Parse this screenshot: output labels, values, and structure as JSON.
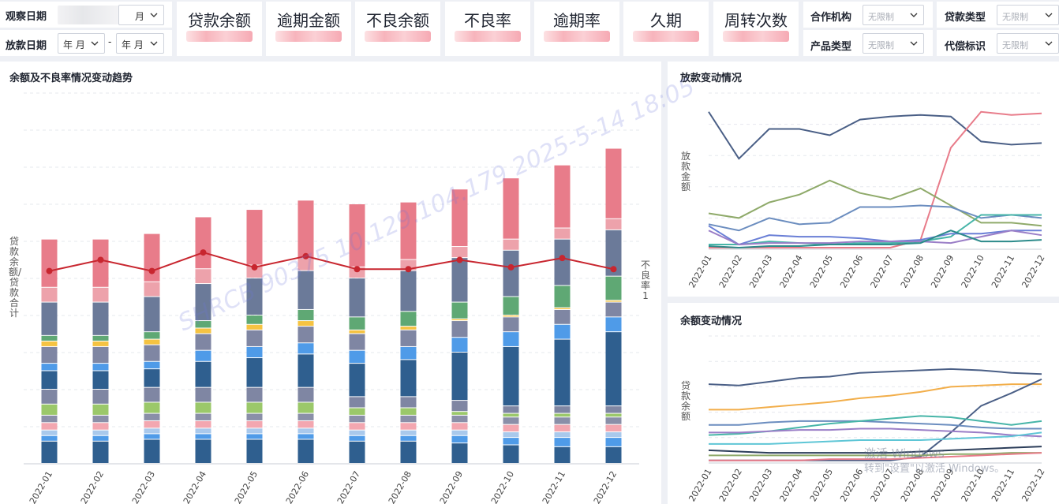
{
  "filters": {
    "observe_date": {
      "label": "观察日期",
      "month_value": "月"
    },
    "loan_date": {
      "label": "放款日期",
      "from": "年 月",
      "separator": "-",
      "to": "年 月"
    },
    "partner": {
      "label": "合作机构",
      "value": "无限制"
    },
    "loan_type": {
      "label": "贷款类型",
      "value": "无限制"
    },
    "product_type": {
      "label": "产品类型",
      "value": "无限制"
    },
    "compensation_flag": {
      "label": "代偿标识",
      "value": "无限制"
    }
  },
  "kpis": [
    {
      "title": "贷款余额",
      "value": ""
    },
    {
      "title": "逾期金额",
      "value": ""
    },
    {
      "title": "不良余额",
      "value": ""
    },
    {
      "title": "不良率",
      "value": ""
    },
    {
      "title": "逾期率",
      "value": ""
    },
    {
      "title": "久期",
      "value": ""
    },
    {
      "title": "周转次数",
      "value": ""
    }
  ],
  "main_panel": {
    "title": "余额及不良率情况变动趋势",
    "y_left_label": "贷款余额/贷款合计",
    "y_right_label": "不良率 1"
  },
  "loan_panel": {
    "title": "放款变动情况",
    "y_label": "放款金额"
  },
  "balance_panel": {
    "title": "余额变动情况",
    "y_label": "贷款余额"
  },
  "watermark": {
    "text": "SHRCB 90375 10.129.104.179 2025-5-14 18:05"
  },
  "windows_activation": {
    "line1": "激活 Windows",
    "line2": "转到\"设置\"以激活 Windows。"
  },
  "colors": {
    "navy": "#2f5f8f",
    "pink": "#e87c8a",
    "slate": "#6b7a99",
    "green": "#5fa874",
    "blue": "#4f9be8",
    "red_line": "#c8262f"
  },
  "chart_data": [
    {
      "type": "bar",
      "title": "余额及不良率情况变动趋势",
      "categories": [
        "2022-01",
        "2022-02",
        "2022-03",
        "2022-04",
        "2022-05",
        "2022-06",
        "2022-07",
        "2022-08",
        "2022-09",
        "2022-10",
        "2022-11",
        "2022-12"
      ],
      "ylabel": "贷款余额/贷款合计",
      "y2label": "不良率 1",
      "ylim": [
        0,
        100
      ],
      "grid": true,
      "stacked": true,
      "series": [
        {
          "color": "#2f5f8f",
          "values": [
            6,
            6,
            6.5,
            6.5,
            6.5,
            6.5,
            6,
            6,
            5.5,
            5,
            4.5,
            4.5
          ]
        },
        {
          "color": "#4f9be8",
          "values": [
            1.5,
            1.5,
            1.5,
            1.5,
            1.5,
            1.5,
            1.5,
            1.5,
            2,
            2,
            2.5,
            2.5
          ]
        },
        {
          "color": "#a9c9ec",
          "values": [
            1.5,
            1.5,
            1.5,
            1.5,
            1.5,
            1.5,
            1.5,
            1.5,
            1.5,
            1.5,
            1.5,
            1.5
          ]
        },
        {
          "color": "#f3a7b0",
          "values": [
            2,
            2,
            2,
            2,
            2,
            2,
            2,
            2,
            2,
            2,
            2,
            2
          ]
        },
        {
          "color": "#8a8fa8",
          "values": [
            2,
            2,
            2,
            2,
            2,
            2,
            2,
            2,
            2,
            2,
            2,
            2
          ]
        },
        {
          "color": "#9bc86a",
          "values": [
            3,
            3,
            3,
            3,
            3,
            3,
            2,
            2,
            1,
            1,
            1,
            1
          ]
        },
        {
          "color": "#7f86a3",
          "values": [
            4,
            4,
            4,
            4,
            4,
            4,
            3,
            3,
            3,
            2,
            2,
            2
          ]
        },
        {
          "color": "#2f5f8f",
          "values": [
            5,
            5,
            5,
            7,
            8,
            9,
            9,
            10,
            13,
            16,
            18,
            20
          ]
        },
        {
          "color": "#4f9be8",
          "values": [
            2,
            2,
            2,
            3,
            3,
            3,
            3.5,
            3.5,
            4,
            4,
            4,
            4
          ]
        },
        {
          "color": "#7f86a3",
          "values": [
            4.5,
            4.5,
            4.5,
            4.5,
            4.5,
            4.5,
            4.5,
            4.5,
            4.5,
            4,
            4,
            4
          ]
        },
        {
          "color": "#f5c342",
          "values": [
            1.5,
            1.5,
            1.5,
            1.5,
            1.5,
            1.5,
            1,
            1,
            0.5,
            0.5,
            0.5,
            0.5
          ]
        },
        {
          "color": "#5fa874",
          "values": [
            1.5,
            1.5,
            2,
            2,
            2.5,
            3,
            3.5,
            4,
            4.5,
            5,
            6,
            6.5
          ]
        },
        {
          "color": "#6b7a99",
          "values": [
            9,
            9,
            9.5,
            10,
            10,
            10.5,
            10.5,
            11,
            12,
            12.5,
            12.5,
            12.5
          ]
        },
        {
          "color": "#eda2ab",
          "values": [
            4,
            4,
            4,
            4,
            3.5,
            3.5,
            3,
            3,
            3,
            3,
            3,
            3
          ]
        },
        {
          "color": "#e87c8a",
          "values": [
            13,
            13,
            13,
            14,
            15,
            15.5,
            17,
            15.5,
            15.5,
            16.5,
            17,
            19
          ]
        }
      ],
      "line_series": {
        "color": "#c8262f",
        "values": [
          52,
          55,
          52,
          57,
          53,
          56,
          52.5,
          52.5,
          55,
          53,
          55.5,
          52.5
        ]
      }
    },
    {
      "type": "line",
      "title": "放款变动情况",
      "ylabel": "放款金额",
      "categories": [
        "2022-01",
        "2022-02",
        "2022-03",
        "2022-04",
        "2022-05",
        "2022-06",
        "2022-07",
        "2022-08",
        "2022-09",
        "2022-10",
        "2022-11",
        "2022-12"
      ],
      "ylim": [
        0,
        100
      ],
      "grid": true,
      "series": [
        {
          "color": "#4a5f86",
          "values": [
            88,
            58,
            77,
            77,
            73,
            83,
            85,
            86,
            85,
            69,
            67,
            68
          ]
        },
        {
          "color": "#e87c8a",
          "values": [
            1,
            1,
            1,
            1,
            1,
            1,
            1,
            6,
            65,
            88,
            86,
            87
          ]
        },
        {
          "color": "#8faa6a",
          "values": [
            23,
            20,
            30,
            35,
            44,
            36,
            32,
            39,
            28,
            17,
            17,
            15
          ]
        },
        {
          "color": "#6b8dbf",
          "values": [
            16,
            12,
            20,
            16,
            17,
            27,
            27,
            28,
            27,
            20,
            22,
            20
          ]
        },
        {
          "color": "#47b5a8",
          "values": [
            3,
            3,
            5,
            4,
            3,
            4,
            4,
            5,
            8,
            22,
            22,
            22
          ]
        },
        {
          "color": "#6a7fd6",
          "values": [
            15,
            3,
            9,
            8,
            8,
            7,
            5,
            6,
            10,
            10,
            12,
            12
          ]
        },
        {
          "color": "#9a7ec7",
          "values": [
            12,
            3,
            4,
            4,
            4,
            5,
            5,
            5,
            4,
            8,
            12,
            9
          ]
        },
        {
          "color": "#2c8b8b",
          "values": [
            2,
            1,
            2,
            2,
            3,
            3,
            3,
            4,
            12,
            5,
            5,
            6
          ]
        }
      ]
    },
    {
      "type": "line",
      "title": "余额变动情况",
      "ylabel": "贷款余额",
      "categories": [
        "2022-01",
        "2022-02",
        "2022-03",
        "2022-04",
        "2022-05",
        "2022-06",
        "2022-07",
        "2022-08",
        "2022-09",
        "2022-10",
        "2022-11",
        "2022-12"
      ],
      "ylim": [
        0,
        100
      ],
      "grid": true,
      "series": [
        {
          "color": "#4a5f86",
          "values": [
            62,
            61,
            64,
            67,
            68,
            71,
            72,
            73,
            74,
            73,
            71,
            70
          ]
        },
        {
          "color": "#f2ae4a",
          "values": [
            42,
            42,
            44,
            46,
            48,
            51,
            53,
            56,
            60,
            61,
            62,
            62
          ]
        },
        {
          "color": "#4a5f86",
          "values": [
            2,
            2,
            2,
            2,
            2,
            2,
            2,
            5,
            24,
            45,
            55,
            66
          ]
        },
        {
          "color": "#6b8dbf",
          "values": [
            30,
            30,
            32,
            33,
            33,
            33,
            32,
            31,
            30,
            28,
            27,
            27
          ]
        },
        {
          "color": "#47b5a8",
          "values": [
            22,
            23,
            25,
            28,
            31,
            33,
            35,
            37,
            36,
            33,
            30,
            33
          ]
        },
        {
          "color": "#9a7ec7",
          "values": [
            24,
            24,
            25,
            26,
            26,
            27,
            27,
            26,
            25,
            24,
            22,
            21
          ]
        },
        {
          "color": "#5ec6d6",
          "values": [
            15,
            15,
            15,
            16,
            17,
            18,
            18,
            18,
            19,
            20,
            21,
            24
          ]
        },
        {
          "color": "#2c3e5a",
          "values": [
            10,
            9,
            8,
            8,
            8,
            8,
            8,
            9,
            10,
            11,
            12,
            13
          ]
        },
        {
          "color": "#8faa6a",
          "values": [
            6,
            6,
            6,
            6,
            6,
            6,
            6,
            6,
            7,
            7,
            8,
            8
          ]
        },
        {
          "color": "#e87c8a",
          "values": [
            2,
            2,
            2,
            2,
            3,
            3,
            3,
            4,
            5,
            6,
            7,
            8
          ]
        }
      ]
    }
  ]
}
